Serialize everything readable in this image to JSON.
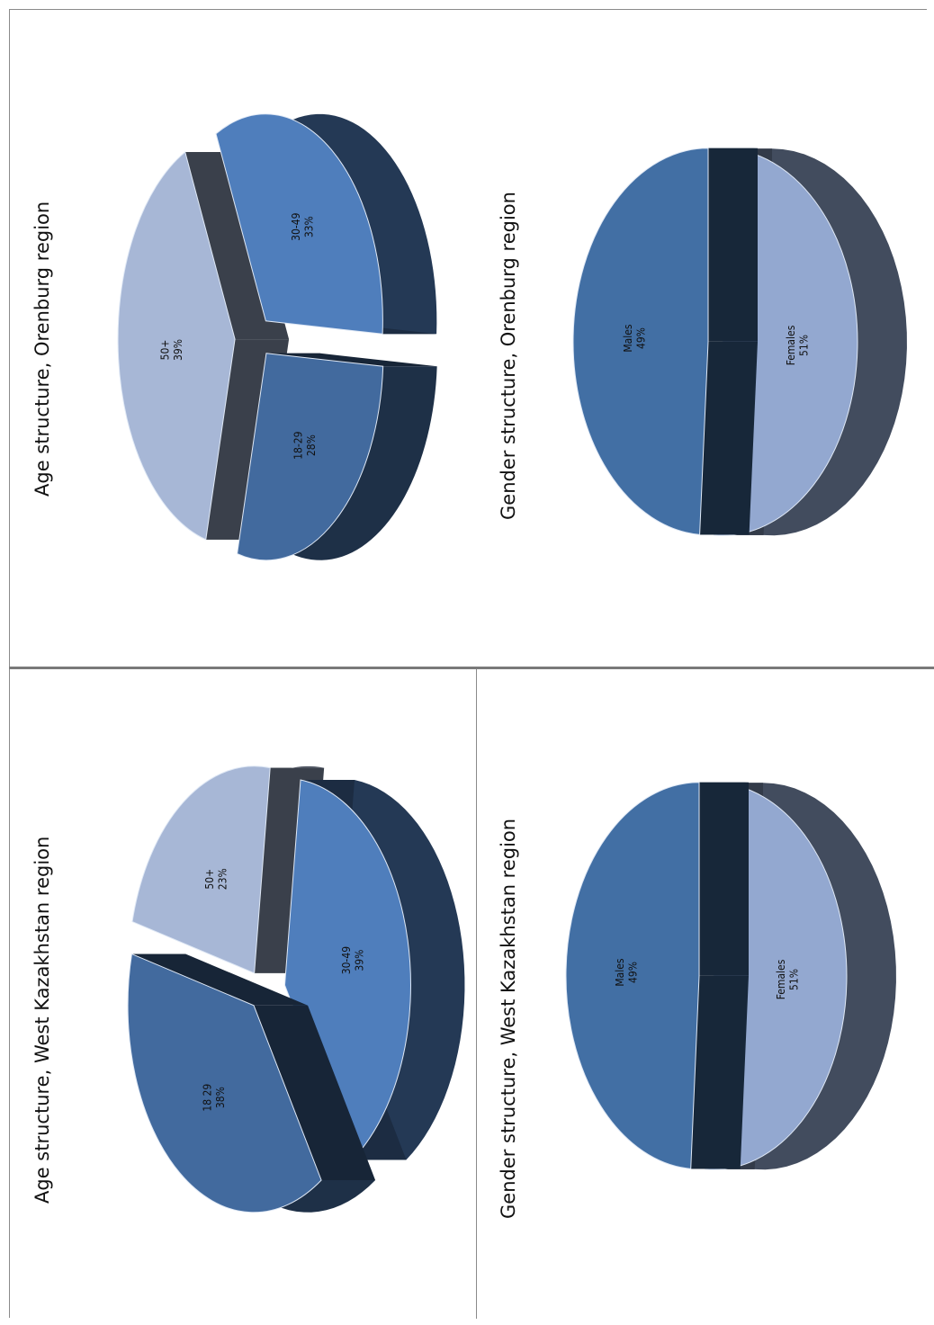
{
  "chart_data": [
    {
      "type": "pie",
      "title": "Age structure, Orenburg region",
      "categories": [
        "50+",
        "30-49",
        "18-29"
      ],
      "values": [
        39,
        33,
        28
      ],
      "value_labels": [
        "39%",
        "33%",
        "28%"
      ],
      "colors": [
        "#a7b7d6",
        "#4f7ebc",
        "#426a9e"
      ]
    },
    {
      "type": "pie",
      "title": "Gender structure, Orenburg region",
      "categories": [
        "Females",
        "Males"
      ],
      "values": [
        51,
        49
      ],
      "value_labels": [
        "51%",
        "49%"
      ],
      "colors": [
        "#93a8d0",
        "#426fa4"
      ]
    },
    {
      "type": "pie",
      "title": "Age structure, West Kazakhstan region",
      "categories": [
        "50+",
        "30-49",
        "18 29"
      ],
      "values": [
        23,
        39,
        38
      ],
      "value_labels": [
        "23%",
        "39%",
        "38%"
      ],
      "colors": [
        "#a7b7d6",
        "#4f7ebc",
        "#426a9e"
      ]
    },
    {
      "type": "pie",
      "title": "Gender structure, West Kazakhstan region",
      "categories": [
        "Females",
        "Males"
      ],
      "values": [
        51,
        49
      ],
      "value_labels": [
        "51%",
        "49%"
      ],
      "colors": [
        "#93a8d0",
        "#426fa4"
      ]
    }
  ]
}
